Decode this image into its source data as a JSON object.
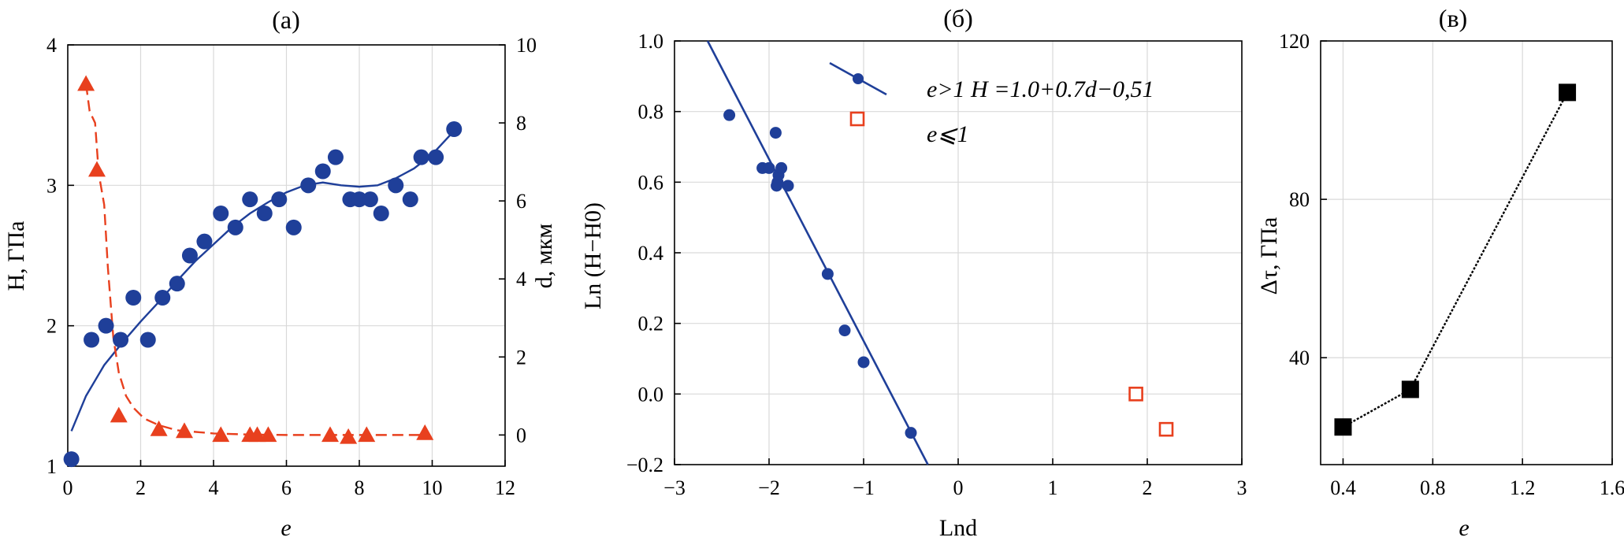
{
  "chart_data": [
    {
      "type": "scatter",
      "title": "(а)",
      "xlabel": "e",
      "ylabel": "H, ГПа",
      "y2label": "d, мкм",
      "xlim": [
        0,
        12
      ],
      "ylim": [
        1,
        4
      ],
      "y2lim": [
        -0.8,
        10
      ],
      "xticks": [
        "0",
        "2",
        "4",
        "6",
        "8",
        "10",
        "12"
      ],
      "xtick_values": [
        0,
        2,
        4,
        6,
        8,
        10,
        12
      ],
      "yticks": [
        "1",
        "2",
        "3",
        "4"
      ],
      "ytick_values": [
        1,
        2,
        3,
        4
      ],
      "y2ticks": [
        "0",
        "2",
        "4",
        "6",
        "8",
        "10"
      ],
      "y2tick_values": [
        0,
        2,
        4,
        6,
        8,
        10
      ],
      "grid": true,
      "colors": {
        "hardness": "#1f3f99",
        "grain": "#e8401e"
      },
      "series": [
        {
          "name": "H",
          "axis": "left",
          "marker": "circle",
          "x": [
            0.1,
            0.65,
            1.05,
            1.45,
            1.8,
            2.2,
            2.6,
            3.0,
            3.35,
            3.75,
            4.2,
            4.6,
            5.0,
            5.4,
            5.8,
            6.2,
            6.6,
            7.0,
            7.35,
            7.75,
            8.0,
            8.3,
            8.6,
            9.0,
            9.4,
            9.7,
            10.1,
            10.6
          ],
          "values": [
            1.05,
            1.9,
            2.0,
            1.9,
            2.2,
            1.9,
            2.2,
            2.3,
            2.5,
            2.6,
            2.8,
            2.7,
            2.9,
            2.8,
            2.9,
            2.7,
            3.0,
            3.1,
            3.2,
            2.9,
            2.9,
            2.9,
            2.8,
            3.0,
            2.9,
            3.2,
            3.2,
            3.4
          ]
        },
        {
          "name": "H fit",
          "axis": "left",
          "style": "line",
          "x": [
            0.1,
            0.5,
            1.0,
            1.5,
            2.0,
            2.5,
            3.0,
            3.5,
            4.0,
            4.5,
            5.0,
            5.5,
            6.0,
            6.5,
            7.0,
            7.5,
            8.0,
            8.5,
            9.0,
            9.5,
            10.0,
            10.5
          ],
          "values": [
            1.25,
            1.5,
            1.72,
            1.88,
            2.03,
            2.17,
            2.32,
            2.46,
            2.58,
            2.7,
            2.8,
            2.88,
            2.95,
            3.0,
            3.02,
            3.0,
            2.99,
            3.0,
            3.05,
            3.12,
            3.22,
            3.36
          ]
        },
        {
          "name": "d",
          "axis": "right",
          "marker": "triangle",
          "x": [
            0.5,
            0.8,
            1.4,
            2.5,
            3.2,
            4.2,
            5.0,
            5.2,
            5.5,
            7.2,
            7.7,
            8.2,
            9.8
          ],
          "values": [
            9.0,
            6.8,
            0.5,
            0.15,
            0.1,
            0.0,
            0.0,
            0.0,
            0.0,
            0.0,
            -0.05,
            0.0,
            0.05
          ]
        },
        {
          "name": "d fit",
          "axis": "right",
          "style": "dashed",
          "x": [
            0.5,
            0.6,
            0.75,
            0.85,
            1.0,
            1.1,
            1.25,
            1.4,
            1.6,
            1.8,
            2.1,
            2.5,
            3.0,
            4.0,
            5.0,
            6.0,
            7.0,
            8.0,
            9.0,
            9.9
          ],
          "values": [
            9.0,
            8.3,
            8.0,
            6.7,
            5.9,
            4.3,
            2.5,
            1.6,
            1.0,
            0.7,
            0.42,
            0.25,
            0.12,
            0.04,
            0.01,
            0.0,
            0.0,
            0.0,
            0.0,
            0.0
          ]
        }
      ]
    },
    {
      "type": "scatter",
      "title": "(б)",
      "xlabel": "Lnd",
      "ylabel": "Ln (H−H0)",
      "xlim": [
        -3,
        3
      ],
      "ylim": [
        -0.2,
        1.0
      ],
      "xticks": [
        "−3",
        "−2",
        "−1",
        "0",
        "1",
        "2",
        "3"
      ],
      "xtick_values": [
        -3,
        -2,
        -1,
        0,
        1,
        2,
        3
      ],
      "yticks": [
        "−0.2",
        "0.0",
        "0.2",
        "0.4",
        "0.6",
        "0.8",
        "1.0"
      ],
      "ytick_values": [
        -0.2,
        0.0,
        0.2,
        0.4,
        0.6,
        0.8,
        1.0
      ],
      "grid": true,
      "colors": {
        "blue": "#1f3f99",
        "red": "#e8401e"
      },
      "legend": [
        {
          "label": "e>1 H =1.0+0.7d−0,51",
          "marker": "circle-line"
        },
        {
          "label": "e⩽1",
          "marker": "open-square"
        }
      ],
      "series": [
        {
          "name": "e>1",
          "marker": "circle",
          "x": [
            -2.42,
            -2.07,
            -2.0,
            -1.93,
            -1.9,
            -1.87,
            -1.8,
            -1.91,
            -1.92,
            -1.38,
            -1.2,
            -1.0,
            -0.5
          ],
          "values": [
            0.79,
            0.64,
            0.64,
            0.74,
            0.62,
            0.64,
            0.59,
            0.6,
            0.59,
            0.34,
            0.18,
            0.09,
            -0.11
          ]
        },
        {
          "name": "fit",
          "style": "line",
          "x": [
            -2.65,
            -0.32
          ],
          "values": [
            1.0,
            -0.2
          ]
        },
        {
          "name": "e⩽1",
          "marker": "open-square",
          "x": [
            1.88,
            2.2
          ],
          "values": [
            0.0,
            -0.1
          ]
        }
      ]
    },
    {
      "type": "line",
      "title": "(в)",
      "xlabel": "e",
      "ylabel": "Δτ, ГПа",
      "xlim": [
        0.3,
        1.6
      ],
      "ylim": [
        13,
        120
      ],
      "xticks": [
        "0.4",
        "0.8",
        "1.2",
        "1.6"
      ],
      "xtick_values": [
        0.4,
        0.8,
        1.2,
        1.6
      ],
      "yticks": [
        "40",
        "80",
        "120"
      ],
      "ytick_values": [
        40,
        80,
        120
      ],
      "grid": true,
      "colors": {
        "line": "#000000"
      },
      "series": [
        {
          "name": "Δτ",
          "marker": "filled-square",
          "x": [
            0.4,
            0.7,
            1.4
          ],
          "values": [
            22.5,
            32,
            107
          ]
        }
      ]
    }
  ]
}
